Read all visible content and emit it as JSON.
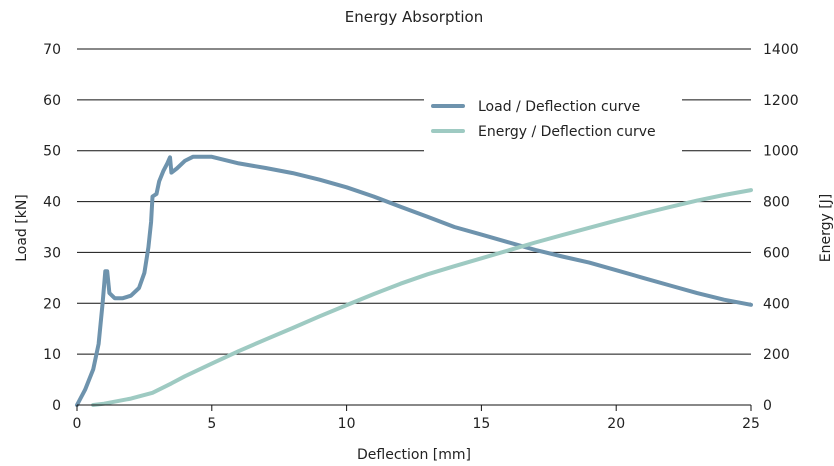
{
  "chart_data": {
    "type": "line",
    "title": "Energy Absorption",
    "xlabel": "Deflection [mm]",
    "ylabel": "Load [kN]",
    "y2label": "Energy [J]",
    "xlim": [
      0,
      25
    ],
    "ylim": [
      0,
      70
    ],
    "y2lim": [
      0,
      1400
    ],
    "x_ticks": [
      0,
      5,
      10,
      15,
      20,
      25
    ],
    "y_ticks": [
      0,
      10,
      20,
      30,
      40,
      50,
      60,
      70
    ],
    "y2_ticks": [
      0,
      200,
      400,
      600,
      800,
      1000,
      1200,
      1400
    ],
    "grid": "horizontal",
    "legend_position": "top-right",
    "series": [
      {
        "name": "Load / Deflection curve",
        "axis": "left",
        "color": "#6e93ad",
        "points": [
          [
            0,
            0
          ],
          [
            0.3,
            3
          ],
          [
            0.6,
            7
          ],
          [
            0.8,
            12
          ],
          [
            0.95,
            20
          ],
          [
            1.05,
            26.3
          ],
          [
            1.12,
            26.3
          ],
          [
            1.2,
            22
          ],
          [
            1.4,
            21
          ],
          [
            1.7,
            21
          ],
          [
            2.0,
            21.5
          ],
          [
            2.3,
            23
          ],
          [
            2.5,
            26
          ],
          [
            2.65,
            31
          ],
          [
            2.75,
            36
          ],
          [
            2.8,
            41
          ],
          [
            2.95,
            41.5
          ],
          [
            3.05,
            44
          ],
          [
            3.2,
            46
          ],
          [
            3.35,
            47.5
          ],
          [
            3.45,
            48.7
          ],
          [
            3.5,
            45.7
          ],
          [
            3.7,
            46.5
          ],
          [
            4.0,
            48
          ],
          [
            4.3,
            48.8
          ],
          [
            5.0,
            48.8
          ],
          [
            6.0,
            47.5
          ],
          [
            7.0,
            46.6
          ],
          [
            8.0,
            45.6
          ],
          [
            9.0,
            44.3
          ],
          [
            10.0,
            42.8
          ],
          [
            11.0,
            41
          ],
          [
            12.0,
            39
          ],
          [
            13.0,
            37
          ],
          [
            14.0,
            35
          ],
          [
            15.0,
            33.5
          ],
          [
            16.0,
            32
          ],
          [
            17.0,
            30.5
          ],
          [
            18.0,
            29.2
          ],
          [
            19.0,
            28
          ],
          [
            20.0,
            26.5
          ],
          [
            21.0,
            25
          ],
          [
            22.0,
            23.5
          ],
          [
            23.0,
            22
          ],
          [
            24.0,
            20.7
          ],
          [
            25.0,
            19.7
          ]
        ]
      },
      {
        "name": "Energy / Deflection curve",
        "axis": "right",
        "color": "#9ecac2",
        "points": [
          [
            0.6,
            0
          ],
          [
            1.0,
            5
          ],
          [
            2.0,
            25
          ],
          [
            2.8,
            48
          ],
          [
            3.5,
            85
          ],
          [
            4.0,
            113
          ],
          [
            5.0,
            163
          ],
          [
            6.0,
            212
          ],
          [
            7.0,
            258
          ],
          [
            8.0,
            303
          ],
          [
            9.0,
            349
          ],
          [
            10.0,
            393
          ],
          [
            11.0,
            436
          ],
          [
            12.0,
            477
          ],
          [
            13.0,
            514
          ],
          [
            14.0,
            546
          ],
          [
            15.0,
            577
          ],
          [
            16.0,
            608
          ],
          [
            17.0,
            639
          ],
          [
            18.0,
            668
          ],
          [
            19.0,
            697
          ],
          [
            20.0,
            725
          ],
          [
            21.0,
            753
          ],
          [
            22.0,
            779
          ],
          [
            23.0,
            804
          ],
          [
            24.0,
            826
          ],
          [
            25.0,
            845
          ]
        ]
      }
    ]
  }
}
